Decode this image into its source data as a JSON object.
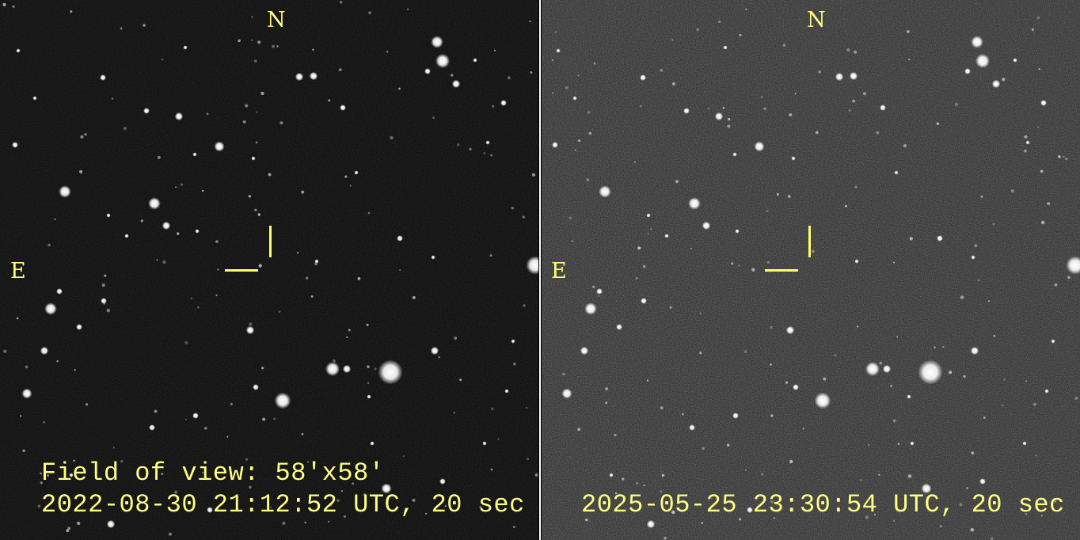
{
  "panels": [
    {
      "north_label": "N",
      "east_label": "E",
      "field_of_view": "Field of view: 58'x58'",
      "timestamp": "2022-08-30 21:12:52 UTC, 20 sec"
    },
    {
      "north_label": "N",
      "east_label": "E",
      "timestamp": "2025-05-25 23:30:54 UTC, 20 sec"
    }
  ],
  "colors": {
    "annotation": "#ffff80",
    "marker": "#ffff66"
  }
}
